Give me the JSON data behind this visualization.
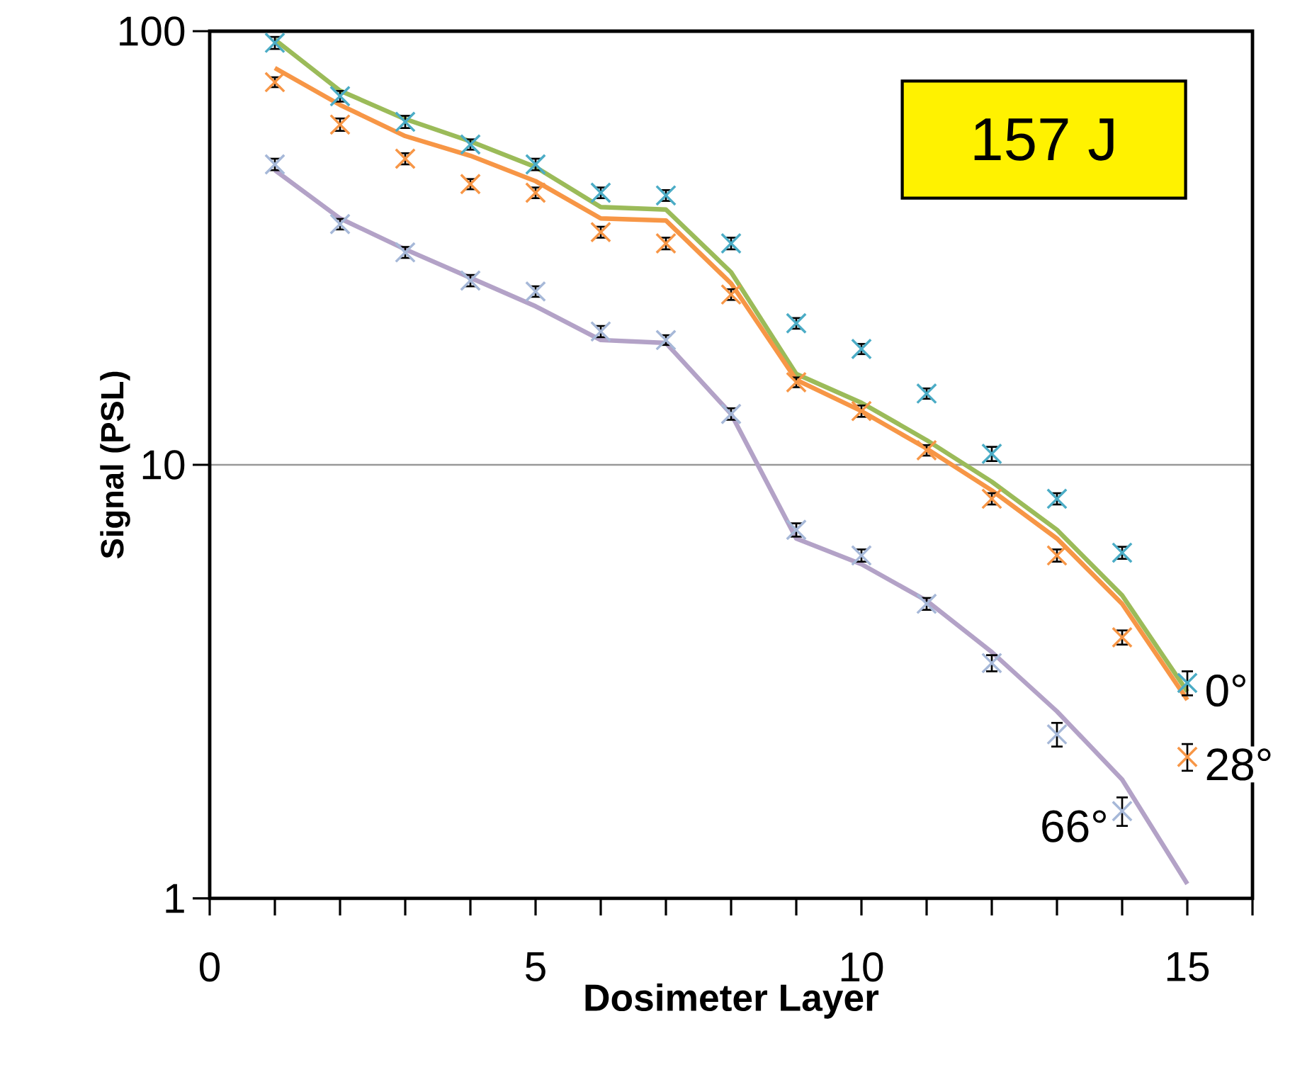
{
  "chart_data": {
    "type": "scatter",
    "xlabel": "Dosimeter Layer",
    "ylabel": "Signal (PSL)",
    "annotations": [
      "157 J"
    ],
    "log": "y",
    "grid": "y",
    "xlim": [
      0,
      16
    ],
    "ylim": [
      1,
      100
    ],
    "xticks": [
      0,
      {
        "value": 1,
        "label": null
      },
      {
        "value": 2,
        "label": null
      },
      {
        "value": 3,
        "label": null
      },
      {
        "value": 4,
        "label": null
      },
      5,
      {
        "value": 6,
        "label": null
      },
      {
        "value": 7,
        "label": null
      },
      {
        "value": 8,
        "label": null
      },
      {
        "value": 9,
        "label": null
      },
      10,
      {
        "value": 11,
        "label": null
      },
      {
        "value": 12,
        "label": null
      },
      {
        "value": 13,
        "label": null
      },
      {
        "value": 14,
        "label": null
      },
      15,
      {
        "value": 16,
        "label": null
      }
    ],
    "yticks": [
      1,
      10,
      100
    ],
    "x": [
      1,
      2,
      3,
      4,
      5,
      6,
      7,
      8,
      9,
      10,
      11,
      12,
      13,
      14,
      15
    ],
    "series": [
      {
        "type": "line",
        "color": "#9bbb59",
        "values": [
          95.6,
          72.9,
          62.7,
          55.7,
          48.6,
          39.3,
          38.8,
          27.8,
          16.2,
          13.9,
          11.4,
          9.14,
          7.08,
          5.0,
          3.0
        ]
      },
      {
        "type": "line",
        "color": "#f79646",
        "values": [
          82.2,
          67.6,
          57.3,
          51.6,
          45.1,
          37.0,
          36.6,
          26.2,
          15.7,
          13.3,
          10.9,
          8.73,
          6.76,
          4.78,
          2.87
        ]
      },
      {
        "type": "line",
        "color": "#b3a2c7",
        "values": [
          47.8,
          37.0,
          31.4,
          27.0,
          23.2,
          19.4,
          19.1,
          13.1,
          6.76,
          5.9,
          4.86,
          3.7,
          2.7,
          1.88,
          1.08
        ]
      },
      {
        "name": "0°",
        "marker": "cross",
        "color": "#4bacc6",
        "values": [
          94,
          70.8,
          61.8,
          54.8,
          49.3,
          42.4,
          41.8,
          32.4,
          21.2,
          18.5,
          14.6,
          10.6,
          8.35,
          6.27,
          3.14
        ],
        "errors": [
          3,
          2,
          2,
          1.5,
          1.5,
          1.2,
          1.2,
          1,
          0.6,
          0.5,
          0.4,
          0.4,
          0.25,
          0.2,
          0.2
        ]
      },
      {
        "name": "28°",
        "marker": "cross",
        "color": "#f79646",
        "values": [
          76.3,
          60.9,
          50.8,
          44.4,
          42.4,
          34.4,
          32.4,
          24.7,
          15.5,
          13.3,
          10.8,
          8.35,
          6.18,
          4.0,
          2.12
        ],
        "errors": [
          2,
          2,
          1.5,
          1.2,
          1.2,
          1,
          1,
          0.7,
          0.4,
          0.4,
          0.3,
          0.25,
          0.2,
          0.15,
          0.15
        ]
      },
      {
        "name": "66°",
        "marker": "cross",
        "color": "#a6b8d8",
        "x": [
          1,
          2,
          3,
          4,
          5,
          6,
          7,
          8,
          9,
          10,
          11,
          12,
          13,
          14
        ],
        "values": [
          49.3,
          35.9,
          30.9,
          26.6,
          25.1,
          20.3,
          19.4,
          13.1,
          7.08,
          6.18,
          4.78,
          3.49,
          2.39,
          1.59
        ],
        "errors": [
          1.5,
          1,
          0.9,
          0.8,
          0.7,
          0.6,
          0.5,
          0.4,
          0.25,
          0.2,
          0.15,
          0.15,
          0.15,
          0.12
        ]
      }
    ]
  }
}
